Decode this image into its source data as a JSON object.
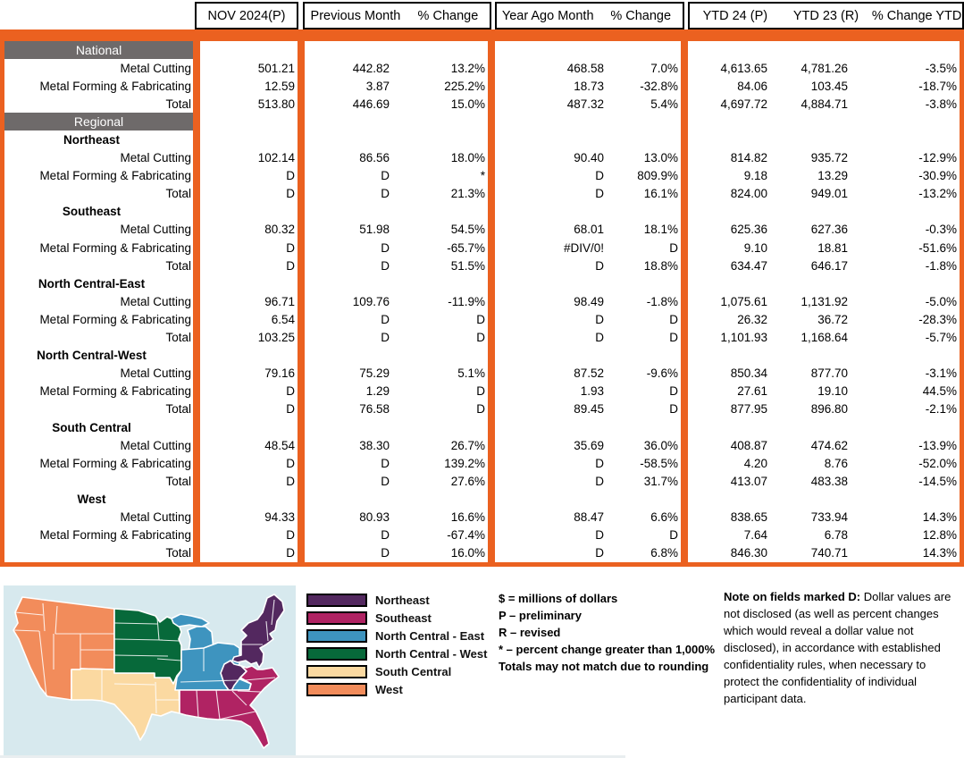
{
  "header": {
    "columns": [
      "NOV 2024(P)",
      "Previous Month",
      "% Change",
      "Year Ago Month",
      "% Change",
      "YTD 24 (P)",
      "YTD 23 (R)",
      "% Change YTD"
    ]
  },
  "table": {
    "rows": [
      {
        "t": "band",
        "label": "National"
      },
      {
        "t": "data",
        "label": "Metal Cutting",
        "v": [
          "501.21",
          "442.82",
          "13.2%",
          "468.58",
          "7.0%",
          "4,613.65",
          "4,781.26",
          "-3.5%"
        ]
      },
      {
        "t": "data",
        "label": "Metal Forming & Fabricating",
        "v": [
          "12.59",
          "3.87",
          "225.2%",
          "18.73",
          "-32.8%",
          "84.06",
          "103.45",
          "-18.7%"
        ]
      },
      {
        "t": "data",
        "label": "Total",
        "v": [
          "513.80",
          "446.69",
          "15.0%",
          "487.32",
          "5.4%",
          "4,697.72",
          "4,884.71",
          "-3.8%"
        ]
      },
      {
        "t": "band",
        "label": "Regional"
      },
      {
        "t": "region",
        "label": "Northeast"
      },
      {
        "t": "data",
        "label": "Metal Cutting",
        "v": [
          "102.14",
          "86.56",
          "18.0%",
          "90.40",
          "13.0%",
          "814.82",
          "935.72",
          "-12.9%"
        ]
      },
      {
        "t": "data",
        "label": "Metal Forming & Fabricating",
        "v": [
          "D",
          "D",
          "*",
          "D",
          "809.9%",
          "9.18",
          "13.29",
          "-30.9%"
        ]
      },
      {
        "t": "data",
        "label": "Total",
        "v": [
          "D",
          "D",
          "21.3%",
          "D",
          "16.1%",
          "824.00",
          "949.01",
          "-13.2%"
        ]
      },
      {
        "t": "region",
        "label": "Southeast"
      },
      {
        "t": "data",
        "label": "Metal Cutting",
        "v": [
          "80.32",
          "51.98",
          "54.5%",
          "68.01",
          "18.1%",
          "625.36",
          "627.36",
          "-0.3%"
        ]
      },
      {
        "t": "data",
        "label": "Metal Forming & Fabricating",
        "v": [
          "D",
          "D",
          "-65.7%",
          "#DIV/0!",
          "D",
          "9.10",
          "18.81",
          "-51.6%"
        ]
      },
      {
        "t": "data",
        "label": "Total",
        "v": [
          "D",
          "D",
          "51.5%",
          "D",
          "18.8%",
          "634.47",
          "646.17",
          "-1.8%"
        ]
      },
      {
        "t": "region",
        "label": "North Central-East"
      },
      {
        "t": "data",
        "label": "Metal Cutting",
        "v": [
          "96.71",
          "109.76",
          "-11.9%",
          "98.49",
          "-1.8%",
          "1,075.61",
          "1,131.92",
          "-5.0%"
        ]
      },
      {
        "t": "data",
        "label": "Metal Forming & Fabricating",
        "v": [
          "6.54",
          "D",
          "D",
          "D",
          "D",
          "26.32",
          "36.72",
          "-28.3%"
        ]
      },
      {
        "t": "data",
        "label": "Total",
        "v": [
          "103.25",
          "D",
          "D",
          "D",
          "D",
          "1,101.93",
          "1,168.64",
          "-5.7%"
        ]
      },
      {
        "t": "region",
        "label": "North Central-West"
      },
      {
        "t": "data",
        "label": "Metal Cutting",
        "v": [
          "79.16",
          "75.29",
          "5.1%",
          "87.52",
          "-9.6%",
          "850.34",
          "877.70",
          "-3.1%"
        ]
      },
      {
        "t": "data",
        "label": "Metal Forming & Fabricating",
        "v": [
          "D",
          "1.29",
          "D",
          "1.93",
          "D",
          "27.61",
          "19.10",
          "44.5%"
        ]
      },
      {
        "t": "data",
        "label": "Total",
        "v": [
          "D",
          "76.58",
          "D",
          "89.45",
          "D",
          "877.95",
          "896.80",
          "-2.1%"
        ]
      },
      {
        "t": "region",
        "label": "South Central"
      },
      {
        "t": "data",
        "label": "Metal Cutting",
        "v": [
          "48.54",
          "38.30",
          "26.7%",
          "35.69",
          "36.0%",
          "408.87",
          "474.62",
          "-13.9%"
        ]
      },
      {
        "t": "data",
        "label": "Metal Forming & Fabricating",
        "v": [
          "D",
          "D",
          "139.2%",
          "D",
          "-58.5%",
          "4.20",
          "8.76",
          "-52.0%"
        ]
      },
      {
        "t": "data",
        "label": "Total",
        "v": [
          "D",
          "D",
          "27.6%",
          "D",
          "31.7%",
          "413.07",
          "483.38",
          "-14.5%"
        ]
      },
      {
        "t": "region",
        "label": "West"
      },
      {
        "t": "data",
        "label": "Metal Cutting",
        "v": [
          "94.33",
          "80.93",
          "16.6%",
          "88.47",
          "6.6%",
          "838.65",
          "733.94",
          "14.3%"
        ]
      },
      {
        "t": "data",
        "label": "Metal Forming & Fabricating",
        "v": [
          "D",
          "D",
          "-67.4%",
          "D",
          "D",
          "7.64",
          "6.78",
          "12.8%"
        ]
      },
      {
        "t": "data",
        "label": "Total",
        "v": [
          "D",
          "D",
          "16.0%",
          "D",
          "6.8%",
          "846.30",
          "740.71",
          "14.3%"
        ]
      }
    ]
  },
  "legend": {
    "items": [
      {
        "label": "Northeast",
        "color": "#53285F"
      },
      {
        "label": "Southeast",
        "color": "#B02363"
      },
      {
        "label": "North Central - East",
        "color": "#3E94BF"
      },
      {
        "label": "North Central - West",
        "color": "#07693A"
      },
      {
        "label": "South Central",
        "color": "#FBD9A1"
      },
      {
        "label": "West",
        "color": "#F28C5B"
      }
    ]
  },
  "footnotes": {
    "lines": [
      "$ = millions of dollars",
      "P – preliminary",
      "R – revised",
      "* – percent change greater than 1,000%",
      "Totals may not match due to rounding"
    ]
  },
  "disclosure_note": {
    "intro": "Note on fields marked D:",
    "text": " Dollar values are not disclosed (as well as percent changes which would reveal a dollar value not disclosed), in accordance with established confidentiality rules, when necessary to protect the confidentiality of individual participant data."
  },
  "map": {
    "background": "#D7E9EE",
    "regions": {
      "west": "#F28C5B",
      "south-central": "#FBD9A1",
      "north-central-west": "#07693A",
      "north-central-east": "#3E94BF",
      "northeast": "#53285F",
      "southeast": "#B02363"
    }
  },
  "colors": {
    "accent_orange": "#EB6120",
    "section_gray": "#6E6A6A"
  }
}
